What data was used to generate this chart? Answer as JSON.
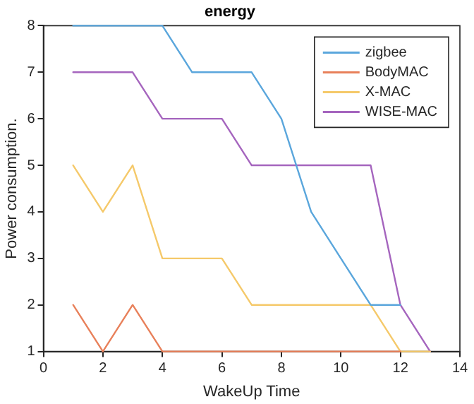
{
  "chart_data": {
    "type": "line",
    "title": "energy",
    "xlabel": "WakeUp Time",
    "ylabel": "Power consumption.",
    "xlim": [
      0,
      14
    ],
    "xticks": [
      0,
      2,
      4,
      6,
      8,
      10,
      12,
      14
    ],
    "ylim": [
      1,
      8
    ],
    "yticks": [
      1,
      2,
      3,
      4,
      5,
      6,
      7,
      8
    ],
    "grid": false,
    "legend": "top right",
    "marker": "none",
    "line_style": "solid",
    "series": [
      {
        "name": "zigbee",
        "color": "#5aa6dc",
        "x": [
          1,
          2,
          3,
          4,
          5,
          6,
          7,
          8,
          9,
          10,
          11,
          12
        ],
        "values": [
          8,
          8,
          8,
          8,
          7,
          7,
          7,
          6,
          4,
          3,
          2,
          2
        ]
      },
      {
        "name": "BodyMAC",
        "color": "#e8805a",
        "x": [
          1,
          2,
          3,
          4,
          5,
          6,
          7,
          8,
          9,
          10,
          11,
          12
        ],
        "values": [
          2,
          1,
          2,
          1,
          1,
          1,
          1,
          1,
          1,
          1,
          1,
          1
        ]
      },
      {
        "name": "X-MAC",
        "color": "#f5c96a",
        "x": [
          1,
          2,
          3,
          4,
          5,
          6,
          7,
          8,
          9,
          10,
          11,
          12,
          13
        ],
        "values": [
          5,
          4,
          5,
          3,
          3,
          3,
          2,
          2,
          2,
          2,
          2,
          1,
          1
        ]
      },
      {
        "name": "WISE-MAC",
        "color": "#a565be",
        "x": [
          1,
          2,
          3,
          4,
          5,
          6,
          7,
          8,
          9,
          10,
          11,
          12,
          13
        ],
        "values": [
          7,
          7,
          7,
          6,
          6,
          6,
          5,
          5,
          5,
          5,
          5,
          2,
          1
        ]
      }
    ]
  }
}
